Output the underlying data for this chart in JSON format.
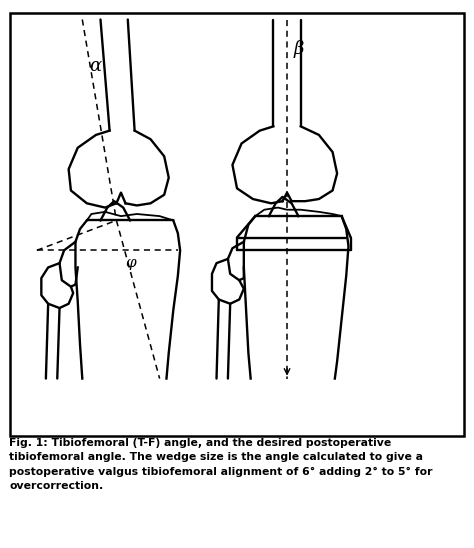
{
  "background_color": "#ffffff",
  "line_color": "#000000",
  "fig_width": 4.74,
  "fig_height": 5.48,
  "caption_line1": "Fig. 1: Tibiofemoral (T-F) angle, and the desired postoperative",
  "caption_line2": "tibiofemoral angle. The wedge size is the angle calculated to give a",
  "caption_line3": "postoperative valgus tibiofemoral alignment of 6° adding 2° to 5° for",
  "caption_line4": "overcorrection.",
  "alpha_label": "α",
  "phi_label": "φ",
  "beta_label": "β"
}
